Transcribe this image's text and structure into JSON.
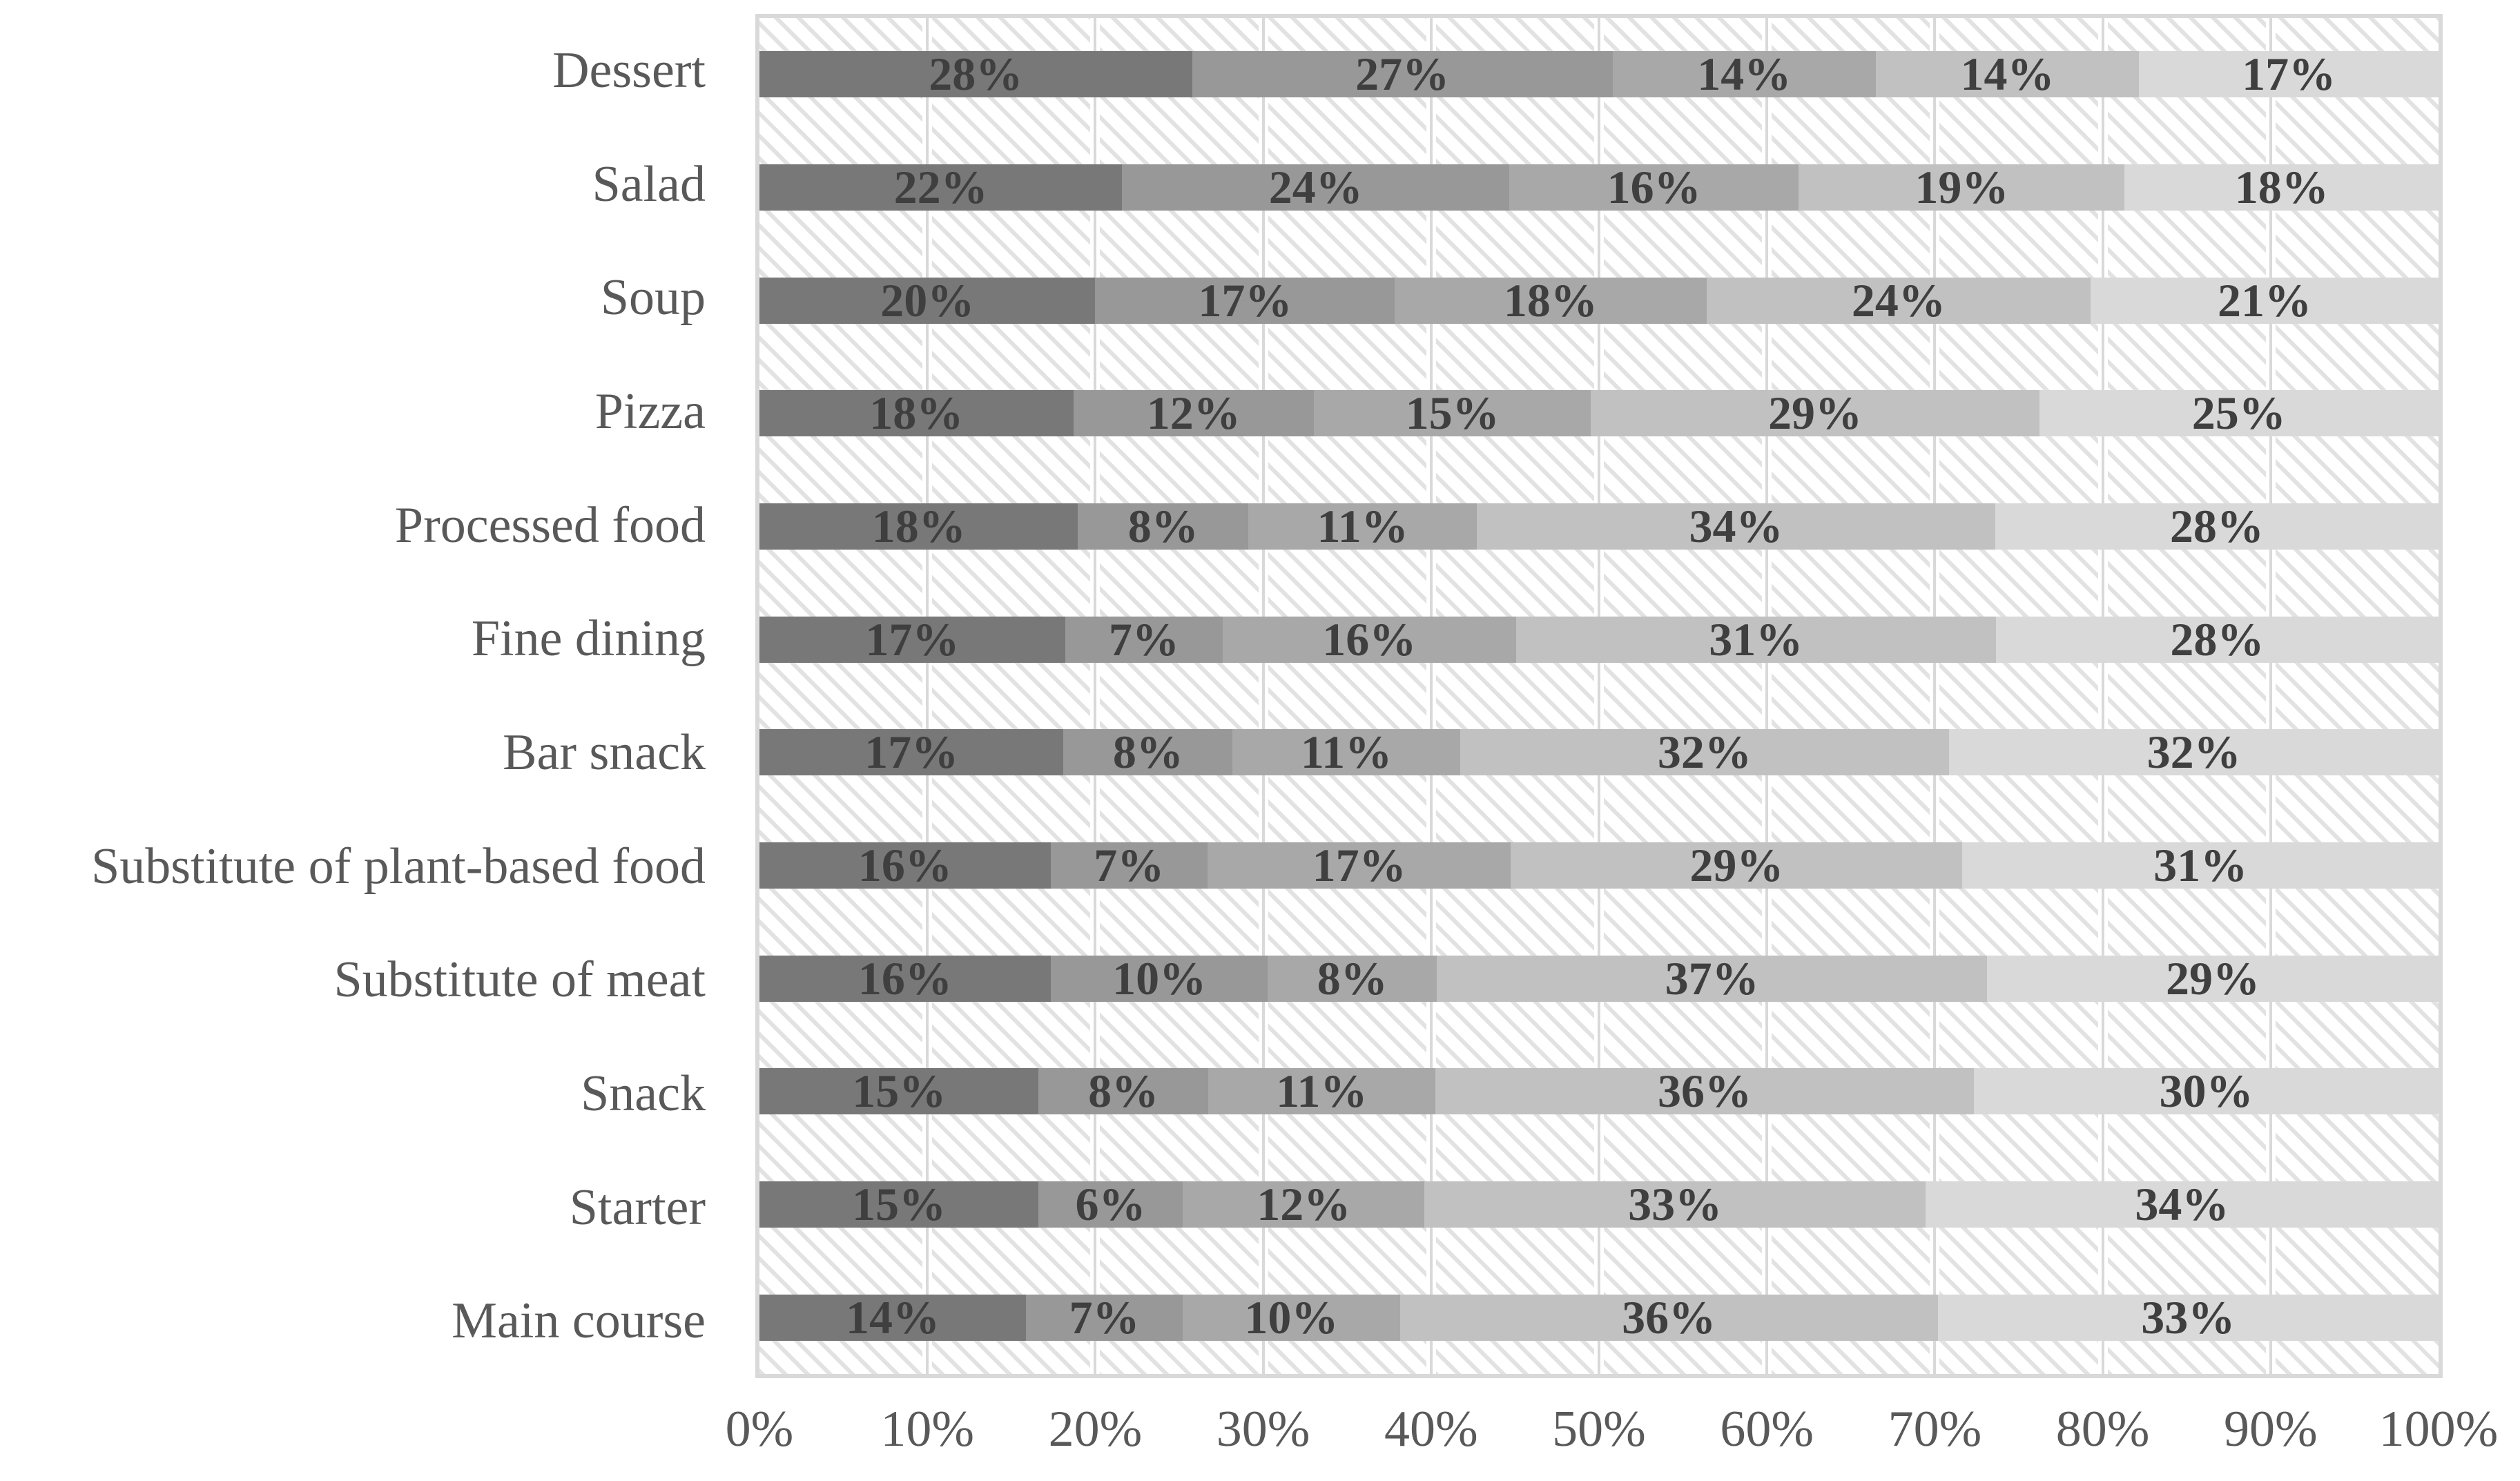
{
  "chart_data": {
    "type": "bar",
    "orientation": "horizontal-stacked",
    "title": "",
    "xlabel": "",
    "ylabel": "",
    "xlim": [
      0,
      100
    ],
    "grid": true,
    "legend": "none",
    "data_label_format": "percent",
    "x_ticks": [
      "0%",
      "10%",
      "20%",
      "30%",
      "40%",
      "50%",
      "60%",
      "70%",
      "80%",
      "90%",
      "100%"
    ],
    "categories": [
      "Dessert",
      "Salad",
      "Soup",
      "Pizza",
      "Processed food",
      "Fine dining",
      "Bar snack",
      "Substitute of plant-based food",
      "Substitute of meat",
      "Snack",
      "Starter",
      "Main course"
    ],
    "series": [
      {
        "name": "segment-1",
        "color": "#787878",
        "values": [
          28,
          22,
          20,
          18,
          18,
          17,
          17,
          16,
          16,
          15,
          15,
          14
        ]
      },
      {
        "name": "segment-2",
        "color": "#989898",
        "values": [
          27,
          24,
          17,
          12,
          8,
          7,
          8,
          7,
          10,
          8,
          6,
          7
        ]
      },
      {
        "name": "segment-3",
        "color": "#a8a8a8",
        "values": [
          14,
          16,
          18,
          15,
          11,
          16,
          11,
          17,
          8,
          11,
          12,
          10
        ]
      },
      {
        "name": "segment-4",
        "color": "#c1c1c1",
        "values": [
          14,
          19,
          24,
          29,
          34,
          31,
          32,
          29,
          37,
          36,
          33,
          36
        ]
      },
      {
        "name": "segment-5",
        "color": "#d9d9d9",
        "values": [
          17,
          18,
          21,
          25,
          28,
          28,
          32,
          31,
          29,
          30,
          34,
          33
        ]
      }
    ]
  },
  "styles": {
    "category_label_color": "#595959",
    "axis_label_color": "#595959",
    "data_label_color": "#3f3f3f",
    "plot_border_color": "#d9d9d9",
    "gridline_color": "#d9d9d9",
    "hatch_color": "#e2e2e2"
  }
}
